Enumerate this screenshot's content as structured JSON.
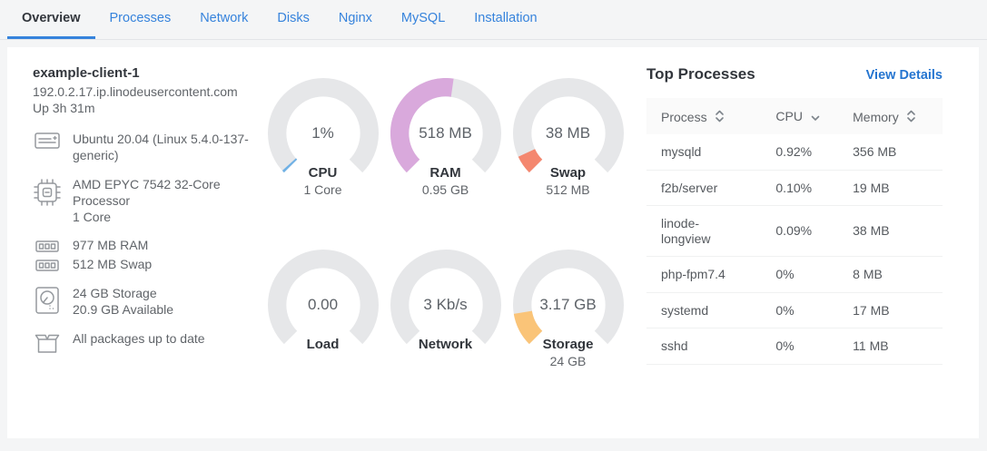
{
  "tabs": [
    {
      "label": "Overview",
      "active": true
    },
    {
      "label": "Processes",
      "active": false
    },
    {
      "label": "Network",
      "active": false
    },
    {
      "label": "Disks",
      "active": false
    },
    {
      "label": "Nginx",
      "active": false
    },
    {
      "label": "MySQL",
      "active": false
    },
    {
      "label": "Installation",
      "active": false
    }
  ],
  "host": {
    "name": "example-client-1",
    "domain": "192.0.2.17.ip.linodeusercontent.com",
    "uptime": "Up 3h 31m",
    "os": "Ubuntu 20.04 (Linux 5.4.0-137-generic)",
    "cpu_model": "AMD EPYC 7542 32-Core Processor",
    "cpu_cores": "1 Core",
    "ram": "977 MB RAM",
    "swap": "512 MB Swap",
    "storage_total": "24 GB Storage",
    "storage_available": "20.9 GB Available",
    "packages": "All packages up to date"
  },
  "icons": {
    "os": "distro-icon",
    "cpu": "cpu-chip-icon",
    "memory": "ram-stick-icon",
    "disk": "hard-disk-icon",
    "packages": "package-box-icon",
    "sort_both": "sort-chevrons-icon",
    "sort_desc": "chevron-down-icon"
  },
  "gauges": [
    {
      "id": "cpu",
      "value": "1%",
      "label": "CPU",
      "sublabel": "1 Core",
      "fraction": 0.01,
      "color": "#70b1e5"
    },
    {
      "id": "ram",
      "value": "518 MB",
      "label": "RAM",
      "sublabel": "0.95 GB",
      "fraction": 0.53,
      "color": "#d9a9dc"
    },
    {
      "id": "swap",
      "value": "38 MB",
      "label": "Swap",
      "sublabel": "512 MB",
      "fraction": 0.074,
      "color": "#f4876f"
    },
    {
      "id": "load",
      "value": "0.00",
      "label": "Load",
      "sublabel": "",
      "fraction": 0,
      "color": ""
    },
    {
      "id": "network",
      "value": "3 Kb/s",
      "label": "Network",
      "sublabel": "",
      "fraction": 0,
      "color": ""
    },
    {
      "id": "storage",
      "value": "3.17 GB",
      "label": "Storage",
      "sublabel": "24 GB",
      "fraction": 0.132,
      "color": "#fac478"
    }
  ],
  "top_processes": {
    "title": "Top Processes",
    "view_details_label": "View Details",
    "columns": [
      {
        "label": "Process",
        "sort": "both"
      },
      {
        "label": "CPU",
        "sort": "desc"
      },
      {
        "label": "Memory",
        "sort": "both"
      }
    ],
    "rows": [
      {
        "process": "mysqld",
        "cpu": "0.92%",
        "memory": "356 MB"
      },
      {
        "process": "f2b/server",
        "cpu": "0.10%",
        "memory": "19 MB"
      },
      {
        "process": "linode-longview",
        "cpu": "0.09%",
        "memory": "38 MB"
      },
      {
        "process": "php-fpm7.4",
        "cpu": "0%",
        "memory": "8 MB"
      },
      {
        "process": "systemd",
        "cpu": "0%",
        "memory": "17 MB"
      },
      {
        "process": "sshd",
        "cpu": "0%",
        "memory": "11 MB"
      }
    ]
  },
  "colors": {
    "page_background": "#f4f5f6",
    "card_background": "#ffffff",
    "tab_blue": "#3683dc",
    "active_tab_underline": "#3683dc",
    "link_blue": "#2575d0",
    "gauge_track": "#e6e7e9",
    "text_dark": "#32363c",
    "text_gray": "#606469"
  }
}
